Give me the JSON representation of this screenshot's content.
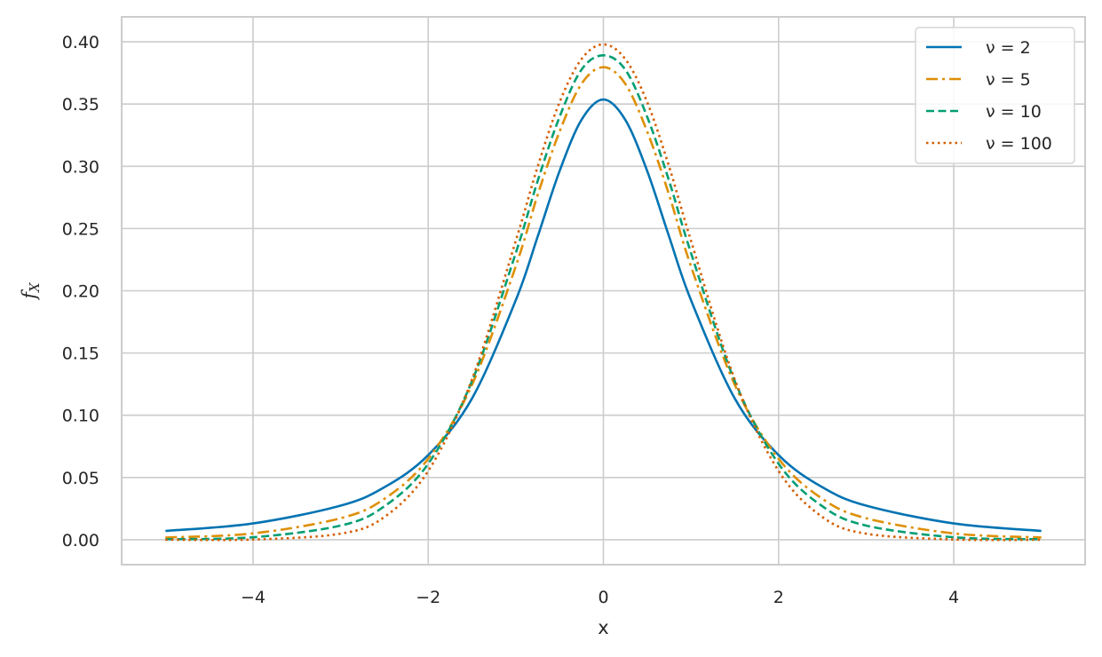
{
  "chart_data": {
    "type": "line",
    "title": "",
    "xlabel": "x",
    "ylabel": {
      "main": "f",
      "sub": "X"
    },
    "xlim": [
      -5.5,
      5.5
    ],
    "ylim": [
      -0.02,
      0.42
    ],
    "xticks": [
      -4,
      -2,
      0,
      2,
      4
    ],
    "xtick_labels": [
      "−4",
      "−2",
      "0",
      "2",
      "4"
    ],
    "yticks": [
      0.0,
      0.05,
      0.1,
      0.15,
      0.2,
      0.25,
      0.3,
      0.35,
      0.4
    ],
    "ytick_labels": [
      "0.00",
      "0.05",
      "0.10",
      "0.15",
      "0.20",
      "0.25",
      "0.30",
      "0.35",
      "0.40"
    ],
    "grid": true,
    "legend_position": "top-right",
    "x": [
      -5,
      -4,
      -3,
      -2.5,
      -2,
      -1.5,
      -1,
      -0.75,
      -0.5,
      -0.25,
      0,
      0.25,
      0.5,
      0.75,
      1,
      1.5,
      2,
      2.5,
      3,
      4,
      5
    ],
    "series": [
      {
        "name": "ν = 2",
        "color": "#0173b2",
        "dash": "solid",
        "values": [
          0.0071,
          0.0131,
          0.0274,
          0.0422,
          0.068,
          0.1135,
          0.1925,
          0.2436,
          0.2962,
          0.3373,
          0.3536,
          0.3373,
          0.2962,
          0.2436,
          0.1925,
          0.1135,
          0.068,
          0.0422,
          0.0274,
          0.0131,
          0.0071
        ]
      },
      {
        "name": "ν = 5",
        "color": "#de8f05",
        "dash": "dashdot",
        "values": [
          0.0018,
          0.0051,
          0.0173,
          0.0329,
          0.0651,
          0.1245,
          0.2197,
          0.2771,
          0.3279,
          0.3662,
          0.3796,
          0.3662,
          0.3279,
          0.2771,
          0.2197,
          0.1245,
          0.0651,
          0.0329,
          0.0173,
          0.0051,
          0.0018
        ]
      },
      {
        "name": "ν = 10",
        "color": "#029e73",
        "dash": "dashed",
        "values": [
          0.0004,
          0.002,
          0.0114,
          0.0269,
          0.0611,
          0.1274,
          0.2304,
          0.2883,
          0.3397,
          0.3776,
          0.3891,
          0.3776,
          0.3397,
          0.2883,
          0.2304,
          0.1274,
          0.0611,
          0.0269,
          0.0114,
          0.002,
          0.0004
        ]
      },
      {
        "name": "ν = 100",
        "color": "#d55e00",
        "dash": "dotted",
        "values": [
          0.0,
          0.0002,
          0.0049,
          0.0183,
          0.0553,
          0.1288,
          0.2402,
          0.2998,
          0.3515,
          0.3861,
          0.3979,
          0.3861,
          0.3515,
          0.2998,
          0.2402,
          0.1288,
          0.0553,
          0.0183,
          0.0049,
          0.0002,
          0.0
        ]
      }
    ]
  }
}
